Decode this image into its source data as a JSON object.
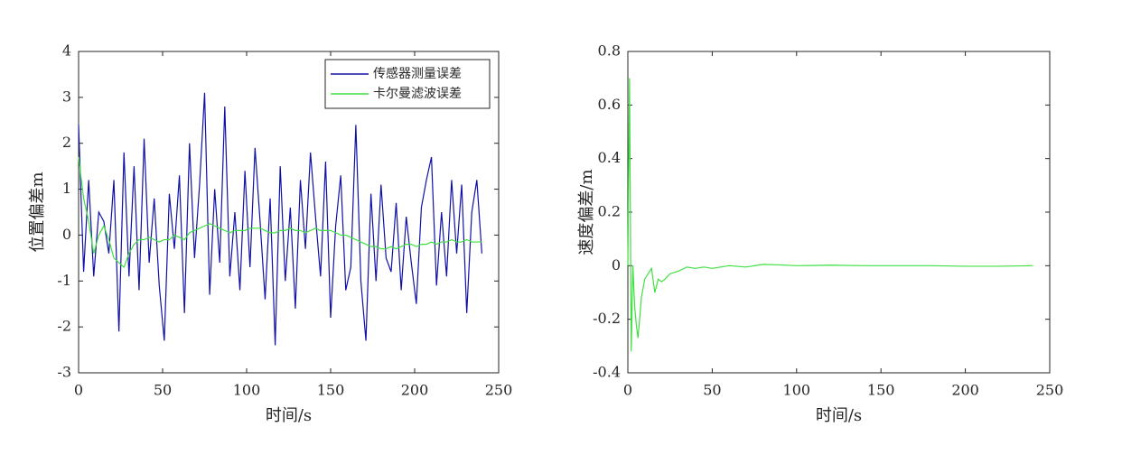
{
  "chart_data": [
    {
      "type": "line",
      "xlabel": "时间/s",
      "ylabel": "位置偏差m",
      "xlim": [
        0,
        250
      ],
      "xticks": [
        0,
        50,
        100,
        150,
        200,
        250
      ],
      "ylim": [
        -3,
        4
      ],
      "yticks": [
        -3,
        -2,
        -1,
        0,
        1,
        2,
        3,
        4
      ],
      "legend": "northeast",
      "x": [
        0,
        3,
        6,
        9,
        12,
        15,
        18,
        21,
        24,
        27,
        30,
        33,
        36,
        39,
        42,
        45,
        48,
        51,
        54,
        57,
        60,
        63,
        66,
        69,
        72,
        75,
        78,
        81,
        84,
        87,
        90,
        93,
        96,
        99,
        102,
        105,
        108,
        111,
        114,
        117,
        120,
        123,
        126,
        129,
        132,
        135,
        138,
        141,
        144,
        147,
        150,
        153,
        156,
        159,
        162,
        165,
        168,
        171,
        174,
        177,
        180,
        183,
        186,
        189,
        192,
        195,
        198,
        201,
        204,
        207,
        210,
        213,
        216,
        219,
        222,
        225,
        228,
        231,
        234,
        237,
        240
      ],
      "series": [
        {
          "name": "传感器测量误差",
          "color": "#1010a8",
          "values": [
            2.4,
            -0.8,
            1.2,
            -0.9,
            0.5,
            0.3,
            -0.4,
            1.2,
            -2.1,
            1.8,
            -0.9,
            1.5,
            -1.2,
            2.1,
            -0.6,
            0.8,
            -1.1,
            -2.3,
            0.9,
            -0.3,
            1.3,
            -1.7,
            2.0,
            -0.5,
            1.1,
            3.1,
            -1.3,
            1.0,
            -0.6,
            2.8,
            -0.9,
            0.5,
            -1.2,
            1.4,
            -0.7,
            1.9,
            0.3,
            -1.4,
            0.8,
            -2.4,
            1.5,
            -1.0,
            0.6,
            -1.6,
            1.2,
            -0.3,
            1.8,
            0.4,
            -0.9,
            1.6,
            -1.8,
            0.2,
            1.3,
            -1.2,
            -0.7,
            2.4,
            -1.0,
            -2.3,
            0.9,
            -1.0,
            1.1,
            -0.5,
            -0.8,
            0.7,
            -1.2,
            0.4,
            -0.6,
            -1.5,
            0.6,
            1.2,
            1.7,
            -1.1,
            0.5,
            -0.9,
            1.2,
            -0.4,
            1.1,
            -1.7,
            0.5,
            1.2,
            -0.4
          ]
        },
        {
          "name": "卡尔曼滤波误差",
          "color": "#40e040",
          "values": [
            1.7,
            0.8,
            0.3,
            -0.4,
            0.0,
            0.2,
            -0.1,
            -0.5,
            -0.6,
            -0.7,
            -0.4,
            -0.2,
            -0.1,
            -0.1,
            -0.05,
            -0.1,
            -0.15,
            -0.1,
            -0.1,
            0.0,
            -0.05,
            -0.1,
            0.05,
            0.1,
            0.15,
            0.2,
            0.25,
            0.2,
            0.15,
            0.1,
            0.05,
            0.1,
            0.1,
            0.1,
            0.15,
            0.15,
            0.15,
            0.1,
            0.05,
            0.05,
            0.1,
            0.1,
            0.15,
            0.1,
            0.1,
            0.05,
            0.1,
            0.15,
            0.1,
            0.1,
            0.1,
            0.05,
            0.0,
            0.0,
            -0.05,
            -0.1,
            -0.15,
            -0.2,
            -0.25,
            -0.25,
            -0.3,
            -0.3,
            -0.25,
            -0.3,
            -0.25,
            -0.2,
            -0.2,
            -0.25,
            -0.2,
            -0.2,
            -0.15,
            -0.2,
            -0.15,
            -0.15,
            -0.1,
            -0.15,
            -0.15,
            -0.1,
            -0.15,
            -0.15,
            -0.15
          ]
        }
      ]
    },
    {
      "type": "line",
      "xlabel": "时间/s",
      "ylabel": "速度偏差/m",
      "xlim": [
        0,
        250
      ],
      "xticks": [
        0,
        50,
        100,
        150,
        200,
        250
      ],
      "ylim": [
        -0.4,
        0.8
      ],
      "yticks": [
        -0.4,
        -0.2,
        0,
        0.2,
        0.4,
        0.6,
        0.8
      ],
      "x": [
        0,
        1,
        2,
        3,
        4,
        5,
        6,
        7,
        8,
        10,
        12,
        14,
        16,
        18,
        20,
        22,
        25,
        30,
        35,
        40,
        45,
        50,
        60,
        70,
        80,
        90,
        100,
        120,
        140,
        160,
        180,
        200,
        220,
        240
      ],
      "series": [
        {
          "color": "#40e040",
          "values": [
            0.0,
            0.7,
            -0.32,
            0.0,
            -0.15,
            -0.22,
            -0.27,
            -0.2,
            -0.12,
            -0.05,
            -0.03,
            -0.01,
            -0.1,
            -0.05,
            -0.06,
            -0.05,
            -0.03,
            -0.02,
            -0.005,
            -0.01,
            -0.005,
            -0.01,
            0.0,
            -0.005,
            0.005,
            0.003,
            0.0,
            0.002,
            0.0,
            0.0,
            0.0,
            -0.002,
            -0.002,
            0.0
          ]
        }
      ]
    }
  ]
}
